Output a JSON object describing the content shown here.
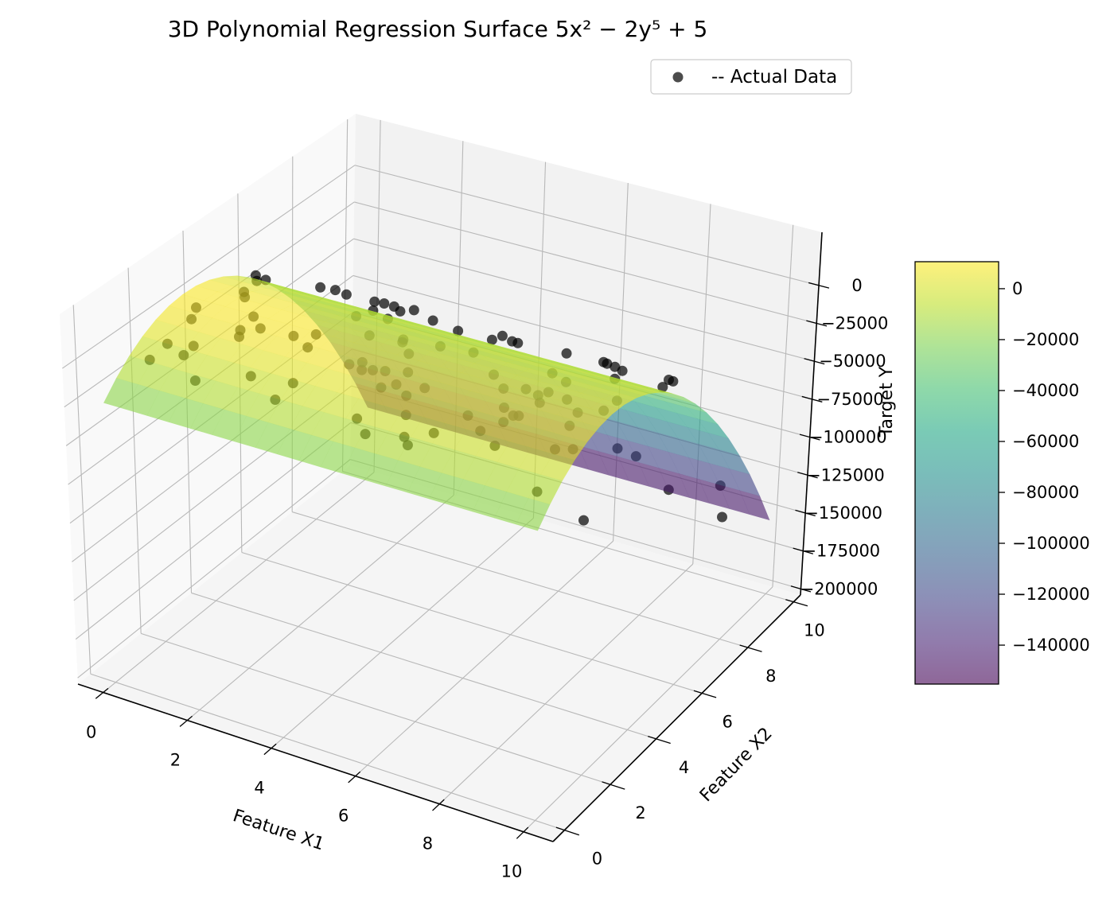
{
  "chart_data": {
    "type": "3d-surface-scatter",
    "title": "3D Polynomial Regression Surface 5x² − 2y⁵ + 5",
    "xlabel": "Feature X1",
    "ylabel": "Feature X2",
    "zlabel": "Target Y",
    "xlim": [
      -0.6,
      10.7
    ],
    "ylim": [
      -0.5,
      10.3
    ],
    "zlim": [
      -204000,
      35000
    ],
    "view": {
      "elev": 30,
      "azim": -60
    },
    "grid": true,
    "xticks": [
      0,
      2,
      4,
      6,
      8,
      10
    ],
    "xtick_labels": [
      "0",
      "2",
      "4",
      "6",
      "8",
      "10"
    ],
    "yticks": [
      0,
      2,
      4,
      6,
      8,
      10
    ],
    "ytick_labels": [
      "0",
      "2",
      "4",
      "6",
      "8",
      "10"
    ],
    "zticks": [
      0,
      -25000,
      -50000,
      -75000,
      -100000,
      -125000,
      -150000,
      -175000,
      -200000
    ],
    "ztick_labels": [
      "0",
      "−25000",
      "−50000",
      "−75000",
      "−100000",
      "−125000",
      "−150000",
      "−175000",
      "−200000"
    ],
    "legend": {
      "position": "upper-right",
      "entries": [
        "-- Actual Data"
      ]
    },
    "surface": {
      "colormap": "viridis",
      "alpha": 0.6,
      "x1": [
        0,
        5,
        10
      ],
      "x2": [
        0,
        0.5,
        1,
        1.5,
        2,
        2.5,
        3,
        3.5,
        4,
        4.5,
        5,
        5.5,
        6,
        6.5,
        7,
        7.5,
        8,
        8.5,
        9,
        9.5,
        10
      ],
      "z": [
        [
          -23429,
          -13486,
          -5286,
          1168,
          5878,
          8844,
          10065,
          9542,
          7274,
          3262,
          -2495,
          -9997,
          -19242,
          -30233,
          -42968,
          -57447,
          -73671,
          -91639,
          -111352,
          -132809,
          -156011
        ],
        [
          -23304,
          -13361,
          -5161,
          1293,
          6003,
          8969,
          10190,
          9667,
          7399,
          3387,
          -2370,
          -9872,
          -19117,
          -30108,
          -42843,
          -57322,
          -73546,
          -91514,
          -111227,
          -132684,
          -155886
        ],
        [
          -22929,
          -12986,
          -4786,
          1668,
          6378,
          9344,
          10565,
          10042,
          7774,
          3762,
          -1995,
          -9497,
          -18742,
          -29733,
          -42468,
          -56947,
          -73171,
          -91139,
          -110852,
          -132309,
          -155511
        ]
      ]
    },
    "scatter": {
      "name": "-- Actual Data",
      "color": "#000000",
      "alpha": 0.7,
      "points": [
        [
          0.05,
          5.62,
          -9740
        ],
        [
          0.12,
          5.55,
          -11970
        ],
        [
          0.3,
          5.6,
          -10500
        ],
        [
          1.66,
          5.5,
          -3700
        ],
        [
          1.92,
          5.65,
          -5340
        ],
        [
          2.31,
          5.45,
          -2800
        ],
        [
          2.82,
          5.7,
          -6750
        ],
        [
          3.16,
          5.52,
          -3070
        ],
        [
          3.42,
          5.48,
          -2600
        ],
        [
          3.4,
          5.75,
          -9370
        ],
        [
          3.83,
          5.58,
          -3080
        ],
        [
          4.23,
          5.66,
          -7900
        ],
        [
          4.85,
          5.62,
          -9420
        ],
        [
          5.67,
          5.6,
          -8780
        ],
        [
          5.99,
          5.47,
          -2080
        ],
        [
          6.12,
          5.64,
          -6850
        ],
        [
          6.31,
          5.55,
          -5400
        ],
        [
          7.49,
          5.5,
          -2500
        ],
        [
          8.32,
          5.58,
          -2950
        ],
        [
          8.38,
          5.62,
          -4080
        ],
        [
          8.66,
          5.46,
          -1890
        ],
        [
          8.7,
          5.7,
          -7380
        ],
        [
          9.9,
          5.52,
          -1730
        ],
        [
          9.98,
          5.56,
          -2670
        ],
        [
          9.65,
          5.72,
          -11000
        ],
        [
          5.49,
          9.88,
          -188000
        ],
        [
          6.76,
          9.0,
          -118100
        ],
        [
          7.2,
          9.03,
          -120400
        ],
        [
          7.86,
          9.33,
          -141800
        ],
        [
          9.24,
          9.11,
          -125500
        ],
        [
          9.12,
          9.47,
          -152300
        ],
        [
          0.46,
          4.54,
          -3860
        ],
        [
          0.63,
          4.3,
          -2935
        ],
        [
          0.14,
          3.27,
          -742
        ],
        [
          0.35,
          2.76,
          -314
        ],
        [
          1.3,
          3.56,
          -1130
        ],
        [
          1.71,
          3.16,
          -610
        ],
        [
          1.42,
          2.87,
          -375
        ],
        [
          1.56,
          2.6,
          -220
        ],
        [
          2.44,
          3.23,
          -668
        ],
        [
          2.77,
          3.55,
          -1083
        ],
        [
          2.95,
          2.94,
          -391
        ],
        [
          0.54,
          1.56,
          -12
        ],
        [
          1.02,
          1.76,
          -24
        ],
        [
          1.07,
          1.31,
          3
        ],
        [
          0.62,
          0.77,
          6
        ],
        [
          1.84,
          0.49,
          22
        ],
        [
          2.66,
          1.25,
          34
        ],
        [
          3.52,
          1.44,
          54
        ],
        [
          3.59,
          0.64,
          69
        ],
        [
          2.88,
          4.9,
          -5600
        ],
        [
          3.4,
          5.27,
          -8100
        ],
        [
          2.86,
          5.58,
          -10800
        ],
        [
          3.66,
          4.14,
          -2360
        ],
        [
          4.31,
          4.38,
          -3110
        ],
        [
          4.37,
          4.25,
          -2670
        ],
        [
          4.78,
          3.82,
          -1500
        ],
        [
          5.08,
          4.55,
          -3790
        ],
        [
          4.04,
          2.74,
          -221
        ],
        [
          4.21,
          2.96,
          -358
        ],
        [
          4.38,
          2.66,
          -165
        ],
        [
          4.57,
          2.77,
          -217
        ],
        [
          4.8,
          2.87,
          -270
        ],
        [
          5.21,
          3.07,
          -405
        ],
        [
          5.1,
          2.21,
          30
        ],
        [
          5.29,
          2.48,
          -43
        ],
        [
          5.71,
          2.17,
          72
        ],
        [
          5.85,
          2.65,
          -84
        ],
        [
          6.12,
          1.46,
          179
        ],
        [
          5.37,
          0.81,
          148
        ],
        [
          5.84,
          0.34,
          176
        ],
        [
          6.56,
          0.64,
          220
        ],
        [
          6.79,
          0.38,
          235
        ],
        [
          6.98,
          1.09,
          246
        ],
        [
          5.77,
          4.7,
          -4415
        ],
        [
          6.7,
          3.94,
          -1683
        ],
        [
          7.2,
          3.48,
          -762
        ],
        [
          7.59,
          3.71,
          -1107
        ],
        [
          7.94,
          3.6,
          -890
        ],
        [
          8.04,
          3.84,
          -1340
        ],
        [
          8.14,
          3.32,
          -470
        ],
        [
          7.6,
          4.75,
          -4546
        ],
        [
          8.07,
          4.5,
          -3360
        ],
        [
          8.53,
          3.75,
          -1115
        ],
        [
          9.01,
          3.35,
          -431
        ],
        [
          9.41,
          3.71,
          -952
        ],
        [
          9.39,
          4.29,
          -2460
        ],
        [
          8.68,
          5.43,
          -9060
        ],
        [
          7.19,
          2.08,
          185
        ],
        [
          7.64,
          2.75,
          -17
        ],
        [
          7.97,
          2.55,
          107
        ],
        [
          8.07,
          2.6,
          95
        ],
        [
          7.94,
          2.21,
          215
        ],
        [
          7.73,
          1.65,
          280
        ],
        [
          8.29,
          1.26,
          343
        ],
        [
          9.16,
          2.76,
          105
        ],
        [
          9.4,
          1.75,
          414
        ],
        [
          9.71,
          1.94,
          421
        ],
        [
          9.95,
          0.05,
          500
        ]
      ]
    },
    "colorbar": {
      "range": [
        -155300,
        10600
      ],
      "ticks": [
        0,
        -20000,
        -40000,
        -60000,
        -80000,
        -100000,
        -120000,
        -140000
      ],
      "tick_labels": [
        "0",
        "−20000",
        "−40000",
        "−60000",
        "−80000",
        "−100000",
        "−120000",
        "−140000"
      ]
    }
  },
  "colors": {
    "pane_x": "#f9f9f9",
    "pane_y": "#f2f2f2",
    "pane_z": "#f5f5f5",
    "grid": "#b8b8b8",
    "axis": "#000000",
    "legend_border": "#cccccc"
  }
}
